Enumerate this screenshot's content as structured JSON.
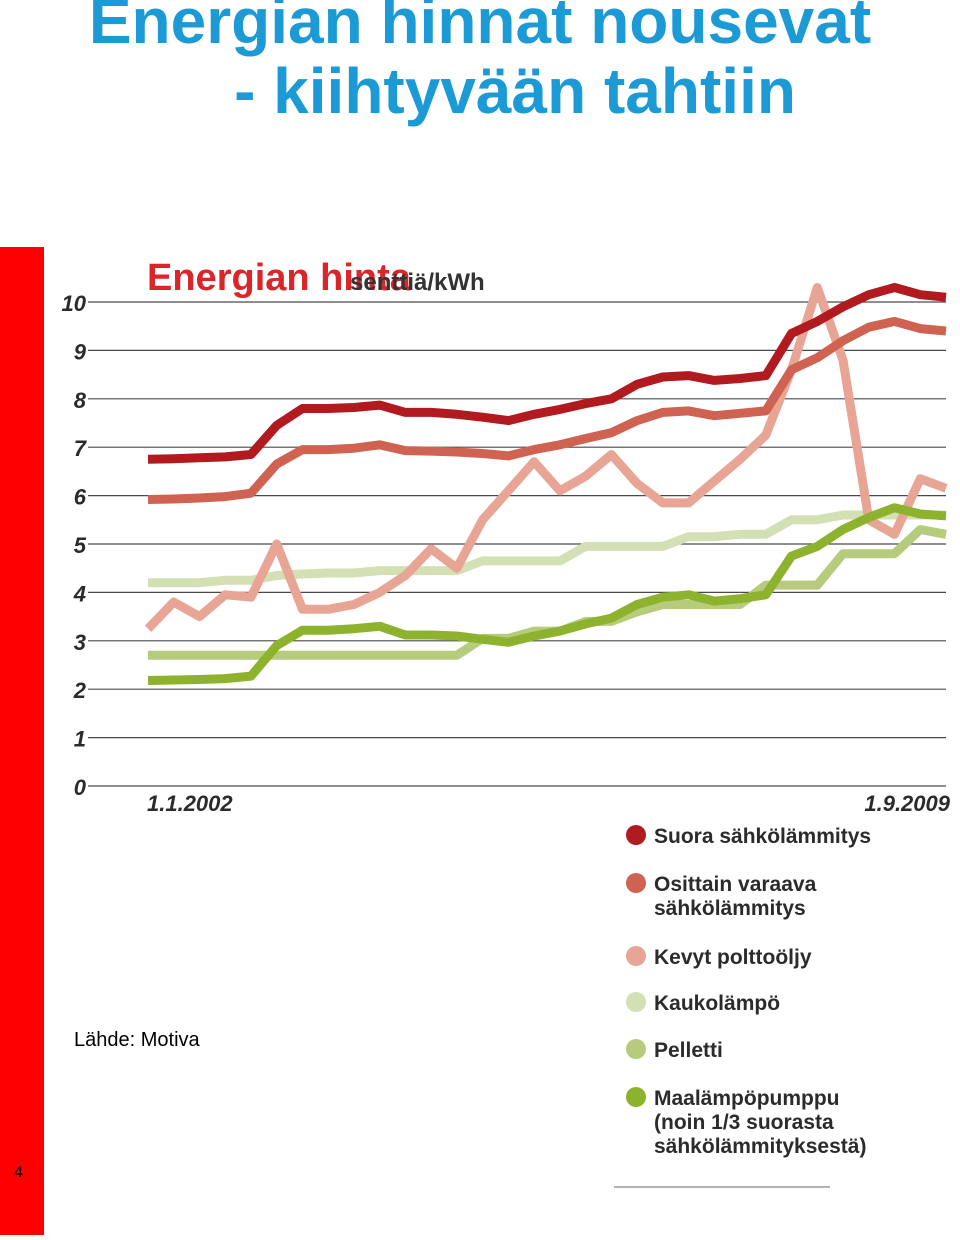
{
  "page": {
    "title_line1": "Energian hinnat nousevat",
    "title_line2": "- kiihtyvään tahtiin",
    "source": "Lähde: Motiva",
    "page_number": "4",
    "accent_color": "#ff0000",
    "title_color": "#1b9ad6"
  },
  "chart_data": {
    "type": "line",
    "title": "Energian hinta",
    "unit": "senttiä/kWh",
    "ylim": [
      0,
      10
    ],
    "yticks": [
      0,
      1,
      2,
      3,
      4,
      5,
      6,
      7,
      8,
      9,
      10
    ],
    "x_start_label": "1.1.2002",
    "x_end_label": "1.9.2009",
    "grid": true,
    "legend_position": "bottom-right",
    "series": [
      {
        "name": "Suora sähkölämmitys",
        "color": "#b11a1f",
        "values": [
          6.75,
          6.76,
          6.78,
          6.8,
          6.85,
          7.45,
          7.8,
          7.8,
          7.82,
          7.87,
          7.72,
          7.72,
          7.68,
          7.62,
          7.55,
          7.68,
          7.78,
          7.9,
          8.0,
          8.3,
          8.45,
          8.48,
          8.38,
          8.42,
          8.48,
          9.35,
          9.6,
          9.9,
          10.15,
          10.3,
          10.15,
          10.1
        ]
      },
      {
        "name": "Osittain varaava sähkölämmitys",
        "color": "#cf6250",
        "values": [
          5.92,
          5.93,
          5.95,
          5.98,
          6.05,
          6.65,
          6.95,
          6.95,
          6.98,
          7.05,
          6.93,
          6.92,
          6.9,
          6.87,
          6.82,
          6.95,
          7.05,
          7.18,
          7.3,
          7.55,
          7.72,
          7.75,
          7.65,
          7.7,
          7.75,
          8.6,
          8.85,
          9.2,
          9.48,
          9.6,
          9.45,
          9.4
        ]
      },
      {
        "name": "Kevyt polttoöljy",
        "color": "#e8a595",
        "values": [
          3.25,
          3.8,
          3.5,
          3.95,
          3.9,
          5.0,
          3.65,
          3.65,
          3.75,
          4.0,
          4.35,
          4.9,
          4.5,
          5.5,
          6.1,
          6.7,
          6.1,
          6.4,
          6.85,
          6.25,
          5.85,
          5.85,
          6.3,
          6.75,
          7.25,
          8.6,
          10.3,
          8.8,
          5.5,
          5.2,
          6.35,
          6.15
        ]
      },
      {
        "name": "Kaukolämpö",
        "color": "#d2e0b4",
        "values": [
          4.2,
          4.2,
          4.2,
          4.25,
          4.25,
          4.35,
          4.38,
          4.4,
          4.4,
          4.45,
          4.45,
          4.45,
          4.45,
          4.65,
          4.65,
          4.65,
          4.65,
          4.95,
          4.95,
          4.95,
          4.95,
          5.15,
          5.15,
          5.2,
          5.2,
          5.5,
          5.5,
          5.6,
          5.6,
          5.6,
          5.6,
          5.6
        ]
      },
      {
        "name": "Pelletti",
        "color": "#b6cc7c",
        "values": [
          2.7,
          2.7,
          2.7,
          2.7,
          2.7,
          2.7,
          2.7,
          2.7,
          2.7,
          2.7,
          2.7,
          2.7,
          2.7,
          3.05,
          3.05,
          3.2,
          3.2,
          3.4,
          3.4,
          3.6,
          3.75,
          3.75,
          3.75,
          3.75,
          4.15,
          4.15,
          4.15,
          4.8,
          4.8,
          4.8,
          5.3,
          5.2
        ]
      },
      {
        "name": "Maalämpöpumppu (noin 1/3 suorasta sähkölämmityksestä)",
        "legend_lines": [
          "Maalämpöpumppu",
          "(noin 1/3 suorasta",
          "sähkölämmityksestä)"
        ],
        "color": "#8db32e",
        "values": [
          2.18,
          2.19,
          2.2,
          2.22,
          2.27,
          2.9,
          3.22,
          3.22,
          3.25,
          3.3,
          3.12,
          3.12,
          3.1,
          3.03,
          2.97,
          3.1,
          3.2,
          3.35,
          3.47,
          3.75,
          3.9,
          3.95,
          3.82,
          3.87,
          3.95,
          4.75,
          4.95,
          5.3,
          5.55,
          5.75,
          5.62,
          5.58
        ]
      }
    ]
  }
}
